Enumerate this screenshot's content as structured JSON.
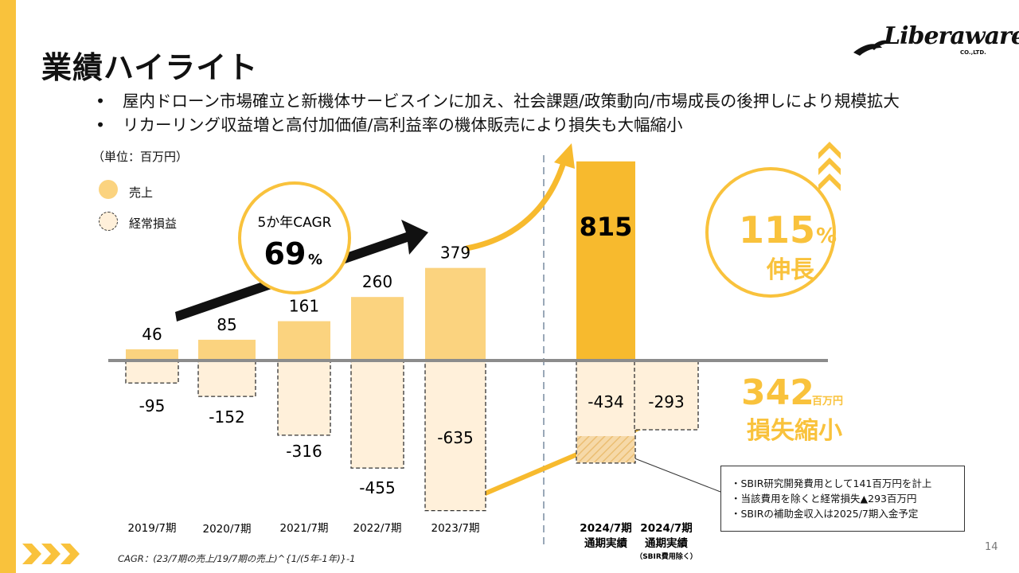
{
  "header": {
    "title": "業績ハイライト",
    "bullets": [
      "屋内ドローン市場確立と新機体サービスインに加え、社会課題/政策動向/市場成長の後押しにより規模拡大",
      "リカーリング収益増と高付加価値/高利益率の機体販売により損失も大幅縮小"
    ],
    "bullet_marker": "•"
  },
  "logo": {
    "text": "Liberaware",
    "sub": "CO.,LTD."
  },
  "unit_label": "（単位：百万円）",
  "legend": [
    {
      "label": "売上",
      "style": "solid"
    },
    {
      "label": "経常損益",
      "style": "dashed"
    }
  ],
  "cagr": {
    "label": "5か年CAGR",
    "value": "69",
    "unit": "%"
  },
  "growth": {
    "value": "115",
    "unit": "%",
    "label": "伸長"
  },
  "loss_reduction": {
    "value": "342",
    "unit": "百万円",
    "label": "損失縮小"
  },
  "callout": {
    "lines": [
      "・SBIR研究開発費用として141百万円を計上",
      "・当該費用を除くと経常損失▲293百万円",
      "・SBIRの補助金収入は2025/7期入金予定"
    ]
  },
  "footnote": "CAGR：(23/7期の売上/19/7期の売上)^{1/(5年-1年)}-1",
  "page_number": "14",
  "colors": {
    "accent": "#F9C23C",
    "revenue_light": "#FBD37F",
    "revenue_dark": "#F7BA2E",
    "loss_fill": "#FFF0DA",
    "axis": "#8C8C8C"
  },
  "chart_data": {
    "type": "bar",
    "categories": [
      "2019/7期",
      "2020/7期",
      "2021/7期",
      "2022/7期",
      "2023/7期",
      "2024/7期\n通期実績",
      "2024/7期\n通期実績"
    ],
    "category_note": [
      "",
      "",
      "",
      "",
      "",
      "",
      "（SBIR費用除く）"
    ],
    "series": [
      {
        "name": "売上",
        "values": [
          46,
          85,
          161,
          260,
          379,
          815,
          null
        ]
      },
      {
        "name": "経常損益",
        "values": [
          -95,
          -152,
          -316,
          -455,
          -635,
          -434,
          -293
        ]
      }
    ],
    "ylim": [
      -650,
      850
    ],
    "xlabel": "",
    "ylabel": ""
  }
}
